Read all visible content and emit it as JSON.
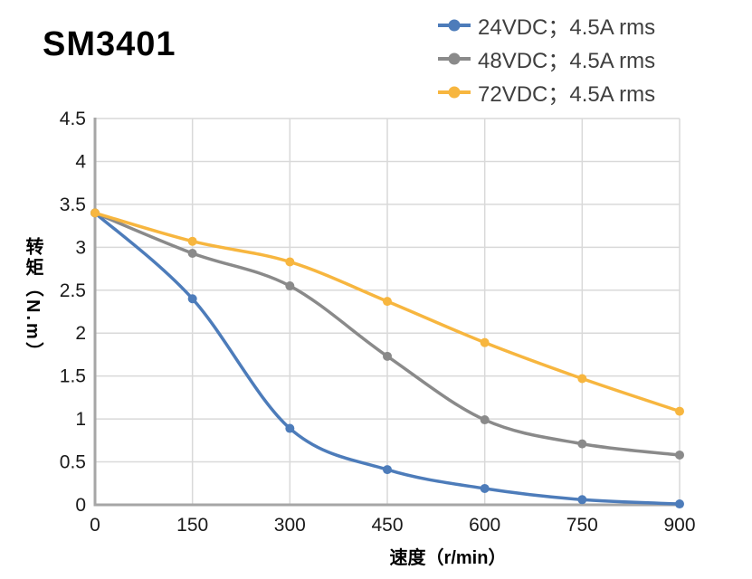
{
  "page": {
    "title": "SM3401"
  },
  "chart_data": {
    "type": "line",
    "title": "SM3401",
    "xlabel": "速度（r/min）",
    "ylabel": "转矩（N.m）",
    "x": [
      0,
      150,
      300,
      450,
      600,
      750,
      900
    ],
    "xlim": [
      0,
      900
    ],
    "ylim": [
      0,
      4.5
    ],
    "xticks": [
      "0",
      "150",
      "300",
      "450",
      "600",
      "750",
      "900"
    ],
    "yticks": [
      "0",
      "0.5",
      "1",
      "1.5",
      "2",
      "2.5",
      "3",
      "3.5",
      "4",
      "4.5"
    ],
    "grid": true,
    "legend_position": "top-right",
    "marker": "circle",
    "colors": {
      "series_24vdc": "#4d7cba",
      "series_48vdc": "#8a8a8a",
      "series_72vdc": "#f7b63f",
      "gridline": "#d9d9d9",
      "axis": "#a6a6a6",
      "legend_text": "#3f3f3f"
    },
    "series": [
      {
        "name": "24VDC；4.5A rms",
        "color": "#4d7cba",
        "values": [
          3.4,
          2.4,
          0.89,
          0.41,
          0.19,
          0.06,
          0.01
        ]
      },
      {
        "name": "48VDC；4.5A rms",
        "color": "#8a8a8a",
        "values": [
          3.4,
          2.93,
          2.55,
          1.73,
          0.99,
          0.71,
          0.58
        ]
      },
      {
        "name": "72VDC；4.5A rms",
        "color": "#f7b63f",
        "values": [
          3.4,
          3.07,
          2.83,
          2.37,
          1.89,
          1.47,
          1.09
        ]
      }
    ]
  }
}
